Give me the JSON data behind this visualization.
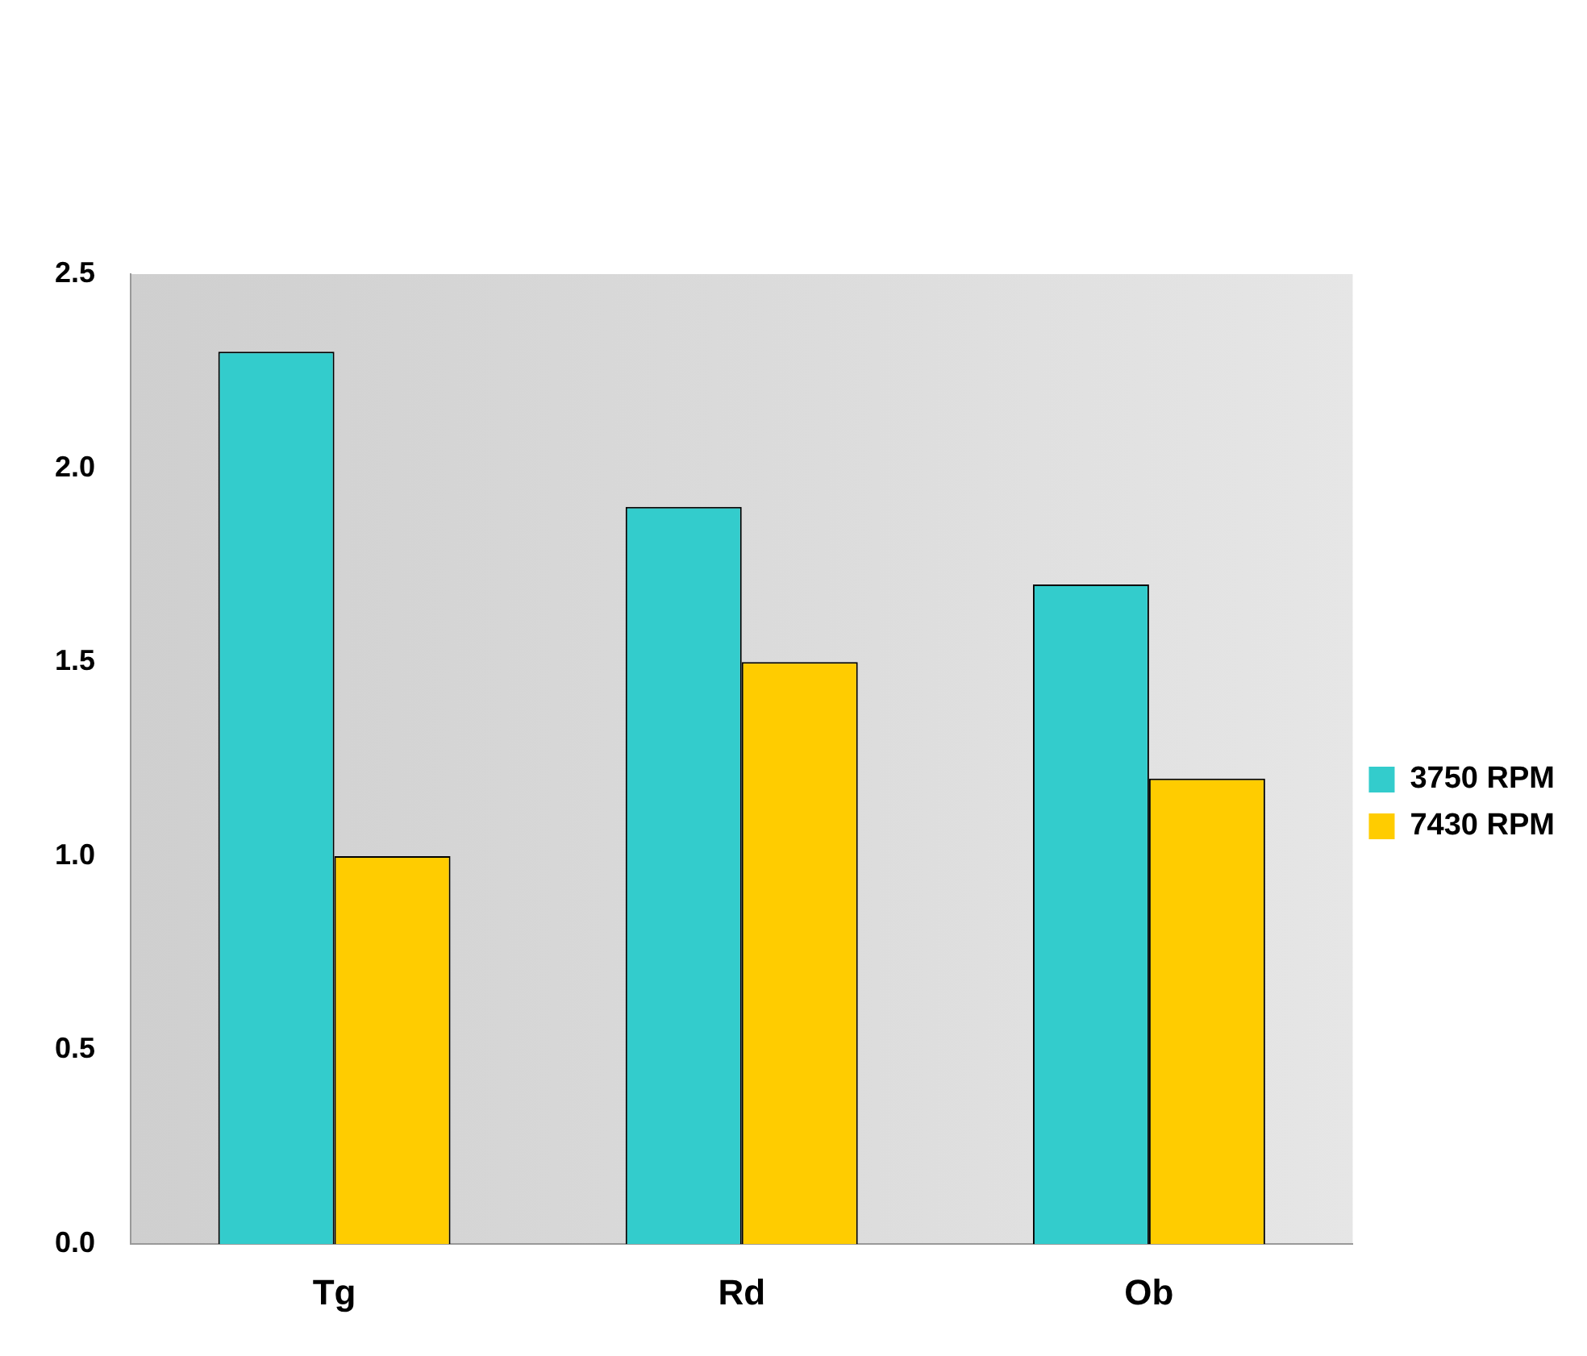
{
  "chart_data": {
    "type": "bar",
    "categories": [
      "Tg",
      "Rd",
      "Ob"
    ],
    "series": [
      {
        "name": "3750 RPM",
        "color": "#33cccc",
        "values": [
          2.3,
          1.9,
          1.7
        ]
      },
      {
        "name": "7430 RPM",
        "color": "#ffcc00",
        "values": [
          1.0,
          1.5,
          1.2
        ]
      }
    ],
    "ylim": [
      0,
      2.5
    ],
    "yticks": [
      {
        "value": 0,
        "label": "0.0"
      },
      0.5,
      {
        "value": 1,
        "label": "1.0"
      },
      1.5,
      {
        "value": 2,
        "label": "2.0"
      },
      2.5
    ],
    "grid": false,
    "legend": "right"
  }
}
